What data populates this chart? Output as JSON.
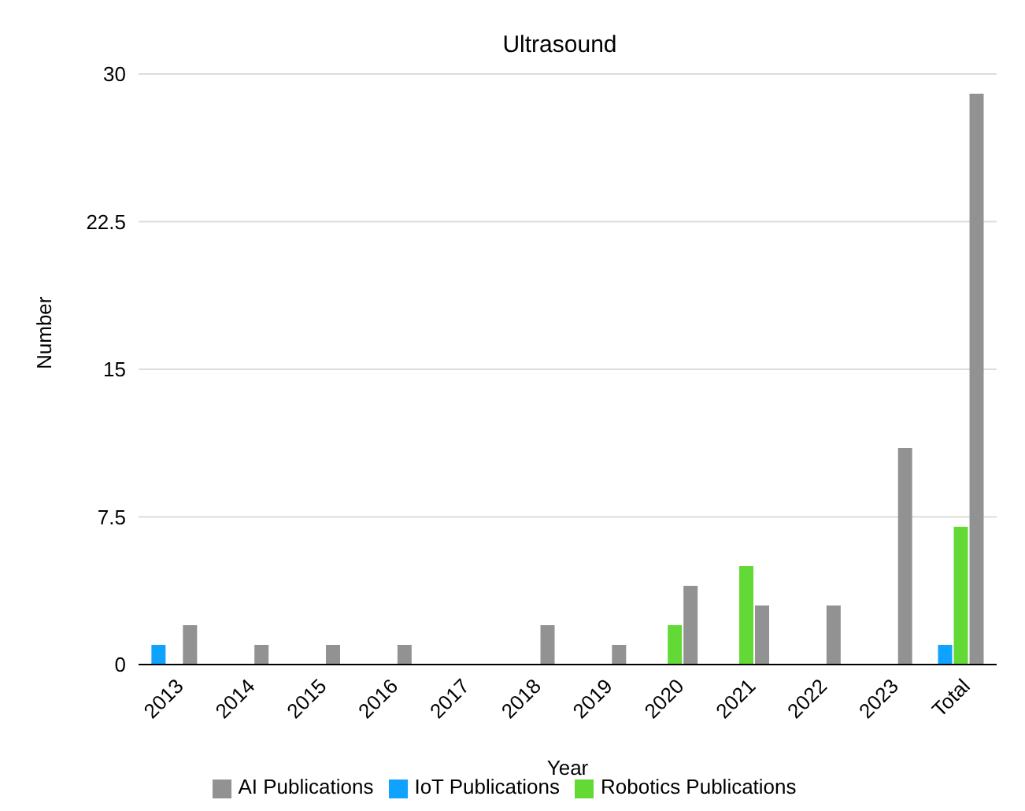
{
  "chart_data": {
    "type": "bar",
    "title": "Ultrasound",
    "xlabel": "Year",
    "ylabel": "Number",
    "categories": [
      "2013",
      "2014",
      "2015",
      "2016",
      "2017",
      "2018",
      "2019",
      "2020",
      "2021",
      "2022",
      "2023",
      "Total"
    ],
    "series": [
      {
        "name": "IoT Publications",
        "color": "#0fa3ff",
        "values": [
          1,
          null,
          null,
          null,
          null,
          null,
          null,
          null,
          null,
          null,
          null,
          1
        ]
      },
      {
        "name": "Robotics Publications",
        "color": "#62d935",
        "values": [
          null,
          null,
          null,
          null,
          null,
          null,
          null,
          2,
          5,
          null,
          null,
          7
        ]
      },
      {
        "name": "AI Publications",
        "color": "#929292",
        "values": [
          2,
          1,
          1,
          1,
          null,
          2,
          1,
          4,
          3,
          3,
          11,
          29
        ]
      }
    ],
    "ylim": [
      0,
      30
    ],
    "yticks": [
      0,
      7.5,
      15,
      22.5,
      30
    ],
    "grid": "y",
    "legend": "bottom"
  }
}
